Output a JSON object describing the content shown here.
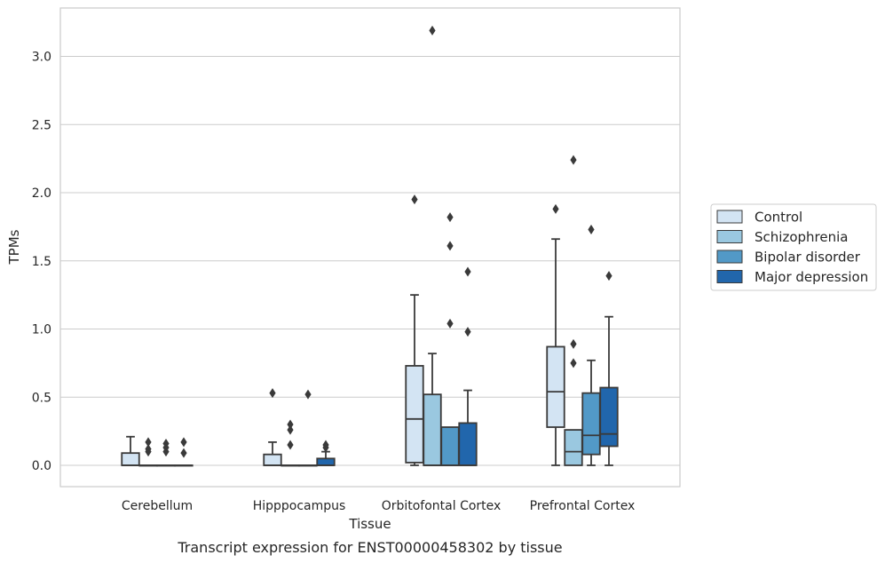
{
  "caption": "Transcript expression for ENST00000458302 by tissue",
  "chart_data": {
    "type": "box",
    "title": "",
    "xlabel": "Tissue",
    "ylabel": "TPMs",
    "ylim": [
      -0.15,
      3.35
    ],
    "yticks": [
      "0.0",
      "0.5",
      "1.0",
      "1.5",
      "2.0",
      "2.5",
      "3.0"
    ],
    "grid": "horizontal",
    "legend_position": "right",
    "categories": [
      "Cerebellum",
      "Hipppocampus",
      "Orbitofontal Cortex",
      "Prefrontal Cortex"
    ],
    "series": [
      {
        "name": "Control",
        "color": "#d3e4f3",
        "boxes": [
          {
            "whislo": 0.0,
            "q1": 0.0,
            "med": 0.0,
            "q3": 0.09,
            "whishi": 0.21,
            "fliers": []
          },
          {
            "whislo": 0.0,
            "q1": 0.0,
            "med": 0.0,
            "q3": 0.08,
            "whishi": 0.17,
            "fliers": [
              0.53
            ]
          },
          {
            "whislo": 0.0,
            "q1": 0.02,
            "med": 0.34,
            "q3": 0.73,
            "whishi": 1.25,
            "fliers": [
              1.95
            ]
          },
          {
            "whislo": 0.0,
            "q1": 0.28,
            "med": 0.54,
            "q3": 0.87,
            "whishi": 1.66,
            "fliers": [
              1.88
            ]
          }
        ]
      },
      {
        "name": "Schizophrenia",
        "color": "#9ac8e0",
        "boxes": [
          {
            "whislo": 0.0,
            "q1": 0.0,
            "med": 0.0,
            "q3": 0.0,
            "whishi": 0.0,
            "fliers": [
              0.17,
              0.12,
              0.1
            ]
          },
          {
            "whislo": 0.0,
            "q1": 0.0,
            "med": 0.0,
            "q3": 0.0,
            "whishi": 0.0,
            "fliers": [
              0.3,
              0.26,
              0.15
            ]
          },
          {
            "whislo": 0.0,
            "q1": 0.0,
            "med": 0.0,
            "q3": 0.52,
            "whishi": 0.82,
            "fliers": [
              3.19
            ]
          },
          {
            "whislo": 0.0,
            "q1": 0.0,
            "med": 0.1,
            "q3": 0.26,
            "whishi": 0.26,
            "fliers": [
              2.24,
              0.89,
              0.75
            ]
          }
        ]
      },
      {
        "name": "Bipolar disorder",
        "color": "#5299c7",
        "boxes": [
          {
            "whislo": 0.0,
            "q1": 0.0,
            "med": 0.0,
            "q3": 0.0,
            "whishi": 0.0,
            "fliers": [
              0.16,
              0.13,
              0.1
            ]
          },
          {
            "whislo": 0.0,
            "q1": 0.0,
            "med": 0.0,
            "q3": 0.0,
            "whishi": 0.0,
            "fliers": [
              0.52
            ]
          },
          {
            "whislo": 0.0,
            "q1": 0.0,
            "med": 0.0,
            "q3": 0.28,
            "whishi": 0.28,
            "fliers": [
              1.82,
              1.61,
              1.04
            ]
          },
          {
            "whislo": 0.0,
            "q1": 0.08,
            "med": 0.22,
            "q3": 0.53,
            "whishi": 0.77,
            "fliers": [
              1.73
            ]
          }
        ]
      },
      {
        "name": "Major depression",
        "color": "#2166ac",
        "boxes": [
          {
            "whislo": 0.0,
            "q1": 0.0,
            "med": 0.0,
            "q3": 0.0,
            "whishi": 0.0,
            "fliers": [
              0.17,
              0.09
            ]
          },
          {
            "whislo": 0.0,
            "q1": 0.0,
            "med": 0.0,
            "q3": 0.05,
            "whishi": 0.1,
            "fliers": [
              0.15,
              0.13
            ]
          },
          {
            "whislo": 0.0,
            "q1": 0.0,
            "med": 0.0,
            "q3": 0.31,
            "whishi": 0.55,
            "fliers": [
              1.42,
              0.98
            ]
          },
          {
            "whislo": 0.0,
            "q1": 0.14,
            "med": 0.23,
            "q3": 0.57,
            "whishi": 1.09,
            "fliers": [
              1.39
            ]
          }
        ]
      }
    ]
  }
}
